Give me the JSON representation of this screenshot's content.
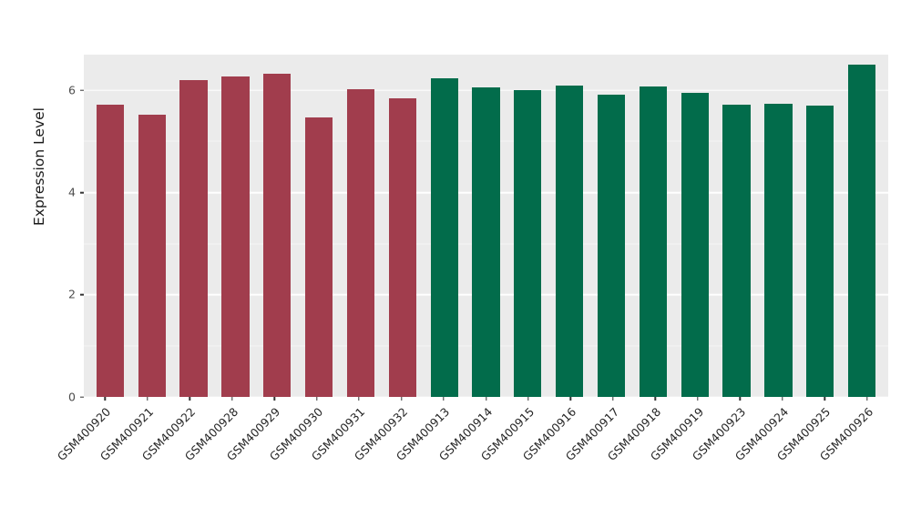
{
  "chart_data": {
    "type": "bar",
    "title": "",
    "xlabel": "",
    "ylabel": "Expression Level",
    "ylim": [
      0,
      6.7
    ],
    "yticks": [
      0,
      2,
      4,
      6
    ],
    "minor_ticks": [
      1,
      3,
      5
    ],
    "grid": "on",
    "legend": "none",
    "panel_background": "#EBEBEB",
    "gridline_color": "#FFFFFF",
    "categories": [
      "GSM400920",
      "GSM400921",
      "GSM400922",
      "GSM400928",
      "GSM400929",
      "GSM400930",
      "GSM400931",
      "GSM400932",
      "GSM400913",
      "GSM400914",
      "GSM400915",
      "GSM400916",
      "GSM400917",
      "GSM400918",
      "GSM400919",
      "GSM400923",
      "GSM400924",
      "GSM400925",
      "GSM400926"
    ],
    "values": [
      5.72,
      5.52,
      6.2,
      6.27,
      6.33,
      5.47,
      6.03,
      5.85,
      6.23,
      6.05,
      6.0,
      6.1,
      5.92,
      6.07,
      5.96,
      5.72,
      5.74,
      5.7,
      6.5
    ],
    "groups": [
      "red",
      "red",
      "red",
      "red",
      "red",
      "red",
      "red",
      "red",
      "green",
      "green",
      "green",
      "green",
      "green",
      "green",
      "green",
      "green",
      "green",
      "green",
      "green"
    ],
    "group_colors": {
      "red": "#A13D4D",
      "green": "#026C4B"
    }
  }
}
